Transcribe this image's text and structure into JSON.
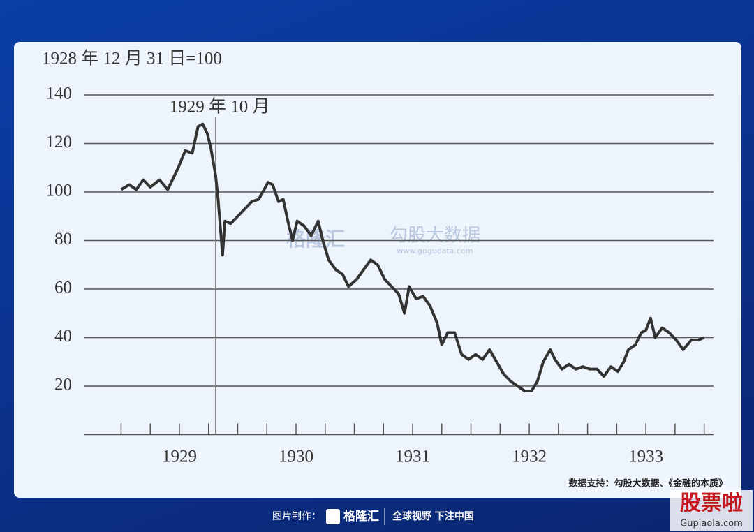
{
  "chart_data": {
    "type": "line",
    "y_unit_label": "1928 年 12 月 31 日=100",
    "annotation": {
      "text": "1929 年 10 月",
      "x": 1929.81
    },
    "source": "数据支持：勾股大数据、《金融的本质》",
    "x": [
      1929.0,
      1929.07,
      1929.13,
      1929.19,
      1929.25,
      1929.33,
      1929.4,
      1929.49,
      1929.55,
      1929.61,
      1929.66,
      1929.7,
      1929.74,
      1929.77,
      1929.81,
      1929.83,
      1929.87,
      1929.89,
      1929.94,
      1930.0,
      1930.06,
      1930.12,
      1930.18,
      1930.26,
      1930.3,
      1930.35,
      1930.39,
      1930.43,
      1930.47,
      1930.51,
      1930.57,
      1930.63,
      1930.69,
      1930.73,
      1930.78,
      1930.84,
      1930.9,
      1930.95,
      1931.02,
      1931.08,
      1931.14,
      1931.2,
      1931.26,
      1931.32,
      1931.38,
      1931.43,
      1931.47,
      1931.53,
      1931.59,
      1931.65,
      1931.71,
      1931.75,
      1931.8,
      1931.86,
      1931.92,
      1931.98,
      1932.04,
      1932.1,
      1932.16,
      1932.22,
      1932.28,
      1932.34,
      1932.4,
      1932.46,
      1932.52,
      1932.57,
      1932.62,
      1932.68,
      1932.72,
      1932.78,
      1932.84,
      1932.9,
      1932.96,
      1933.02,
      1933.08,
      1933.14,
      1933.2,
      1933.26,
      1933.31,
      1933.35,
      1933.41,
      1933.46,
      1933.5,
      1933.54,
      1933.58,
      1933.64,
      1933.7,
      1933.76,
      1933.82,
      1933.89,
      1933.95,
      1934.0
    ],
    "series": [
      {
        "color": "#333333",
        "values": [
          101,
          103,
          101,
          105,
          102,
          105,
          101,
          110,
          117,
          116,
          127,
          128,
          124,
          118,
          107,
          98,
          74,
          88,
          87,
          90,
          93,
          96,
          97,
          104,
          103,
          96,
          97,
          88,
          80,
          88,
          86,
          82,
          88,
          80,
          72,
          68,
          66,
          61,
          64,
          68,
          72,
          70,
          64,
          61,
          58,
          50,
          61,
          56,
          57,
          53,
          46,
          37,
          42,
          42,
          33,
          31,
          33,
          31,
          35,
          30,
          25,
          22,
          20,
          18,
          18,
          22,
          30,
          35,
          31,
          27,
          29,
          27,
          28,
          27,
          27,
          24,
          28,
          26,
          30,
          35,
          37,
          42,
          43,
          48,
          40,
          44,
          42,
          39,
          35,
          39,
          39,
          40
        ]
      }
    ],
    "xlim": [
      1928.68,
      1934.08
    ],
    "xticks": [
      {
        "value": 1929.5,
        "label": "1929"
      },
      {
        "value": 1930.5,
        "label": "1930"
      },
      {
        "value": 1931.5,
        "label": "1931"
      },
      {
        "value": 1932.5,
        "label": "1932"
      },
      {
        "value": 1933.5,
        "label": "1933"
      }
    ],
    "xtick_marks": [
      1929,
      1929.25,
      1929.5,
      1929.75,
      1930,
      1930.25,
      1930.5,
      1930.75,
      1931,
      1931.25,
      1931.5,
      1931.75,
      1932,
      1932.25,
      1932.5,
      1932.75,
      1933,
      1933.25,
      1933.5,
      1933.75,
      1934
    ],
    "ylim": [
      0,
      140
    ],
    "yticks": [
      20,
      40,
      60,
      80,
      100,
      120,
      140
    ],
    "grid": true
  },
  "watermark": {
    "brand": "格隆汇",
    "name": "勾股大数据",
    "url": "www.gogudata.com"
  },
  "footer": {
    "made_by": "图片制作：",
    "brand": "格隆汇",
    "slogan": "全球视野 下注中国"
  },
  "corner": {
    "name": "股票啦",
    "url": "Gupiaola.com"
  }
}
